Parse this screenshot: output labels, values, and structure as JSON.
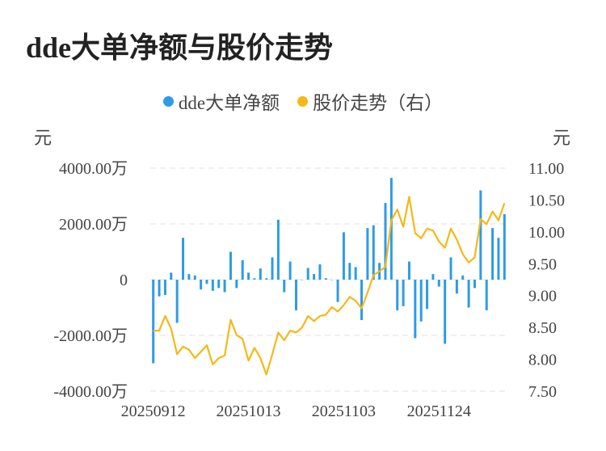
{
  "title": "dde大单净额与股价走势",
  "legend": {
    "dde_label": "dde大单净额",
    "price_label": "股价走势（右）"
  },
  "colors": {
    "bar": "#2e9be6",
    "line": "#f5b818",
    "grid": "#e6e6e6"
  },
  "chart_data": {
    "type": "bar+line",
    "left_unit": "元",
    "right_unit": "元",
    "left_ticks": [
      "4000.00万",
      "2000.00万",
      "0",
      "-2000.00万",
      "-4000.00万"
    ],
    "right_ticks": [
      "11.00",
      "10.50",
      "10.00",
      "9.50",
      "9.00",
      "8.50",
      "8.00",
      "7.50"
    ],
    "ylim_left": [
      -4000,
      4000
    ],
    "ylim_right": [
      7.5,
      11.0
    ],
    "x_tick_labels": [
      "20250912",
      "20251013",
      "20251103",
      "20251124"
    ],
    "x_tick_indices": [
      0,
      16,
      32,
      48
    ],
    "series": [
      {
        "name": "dde大单净额",
        "axis": "left",
        "values": [
          -3000,
          -600,
          -550,
          250,
          -1550,
          1500,
          200,
          150,
          -350,
          -150,
          -400,
          -300,
          -450,
          1000,
          -300,
          700,
          250,
          50,
          400,
          50,
          800,
          2150,
          -450,
          650,
          -1100,
          0,
          420,
          200,
          550,
          50,
          0,
          -800,
          1700,
          600,
          450,
          -1450,
          1850,
          1950,
          600,
          2750,
          3650,
          -1100,
          -950,
          650,
          -2100,
          -1500,
          -1050,
          200,
          -250,
          -2300,
          800,
          -500,
          150,
          -1000,
          -300,
          3200,
          -1100,
          1850,
          1500,
          2350
        ]
      },
      {
        "name": "股价走势（右）",
        "axis": "right",
        "values": [
          8.45,
          8.45,
          8.68,
          8.48,
          8.08,
          8.2,
          8.15,
          8.02,
          8.12,
          8.22,
          7.92,
          8.02,
          8.06,
          8.62,
          8.38,
          8.32,
          7.98,
          8.18,
          8.02,
          7.76,
          8.08,
          8.42,
          8.3,
          8.45,
          8.42,
          8.5,
          8.68,
          8.6,
          8.68,
          8.7,
          8.82,
          8.75,
          8.85,
          8.98,
          8.92,
          8.8,
          9.05,
          9.32,
          9.38,
          9.45,
          10.18,
          10.35,
          10.08,
          10.55,
          9.98,
          9.9,
          10.05,
          10.02,
          9.85,
          9.75,
          10.05,
          9.88,
          9.65,
          9.52,
          9.6,
          10.2,
          10.12,
          10.32,
          10.18,
          10.45
        ]
      }
    ]
  }
}
